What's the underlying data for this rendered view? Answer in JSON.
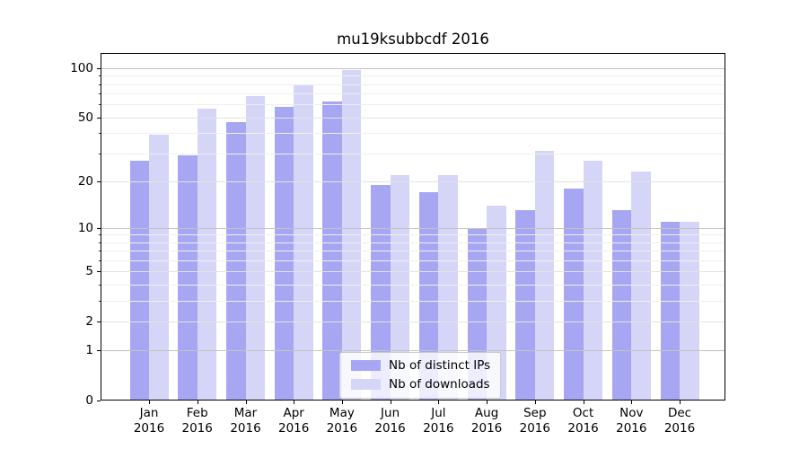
{
  "title": "mu19ksubbcdf 2016",
  "chart_data": {
    "type": "bar",
    "title": "mu19ksubbcdf 2016",
    "x_months": [
      "Jan",
      "Feb",
      "Mar",
      "Apr",
      "May",
      "Jun",
      "Jul",
      "Aug",
      "Sep",
      "Oct",
      "Nov",
      "Dec"
    ],
    "x_year": "2016",
    "categories": [
      "Jan 2016",
      "Feb 2016",
      "Mar 2016",
      "Apr 2016",
      "May 2016",
      "Jun 2016",
      "Jul 2016",
      "Aug 2016",
      "Sep 2016",
      "Oct 2016",
      "Nov 2016",
      "Dec 2016"
    ],
    "series": [
      {
        "name": "Nb of distinct IPs",
        "color": "#a6a6f2",
        "values": [
          27,
          29,
          47,
          58,
          63,
          19,
          17,
          10,
          13,
          18,
          13,
          11
        ]
      },
      {
        "name": "Nb of downloads",
        "color": "#d5d5f7",
        "values": [
          39,
          57,
          68,
          80,
          98,
          22,
          22,
          14,
          31,
          27,
          23,
          11
        ]
      }
    ],
    "yscale": "log10(value+1)",
    "ylim": [
      0,
      125
    ],
    "y_tick_labels": [
      0,
      1,
      2,
      5,
      10,
      20,
      50,
      100
    ],
    "y_gridlines_major": [
      1,
      10,
      100
    ],
    "y_gridlines_mid": [
      2,
      5,
      20,
      50
    ],
    "y_gridlines_minor": [
      3,
      4,
      6,
      7,
      8,
      9,
      30,
      40,
      60,
      70,
      80,
      90
    ],
    "grid": true,
    "legend_position": "lower center",
    "background_color": "#ffffff",
    "text_color": "#000000"
  }
}
